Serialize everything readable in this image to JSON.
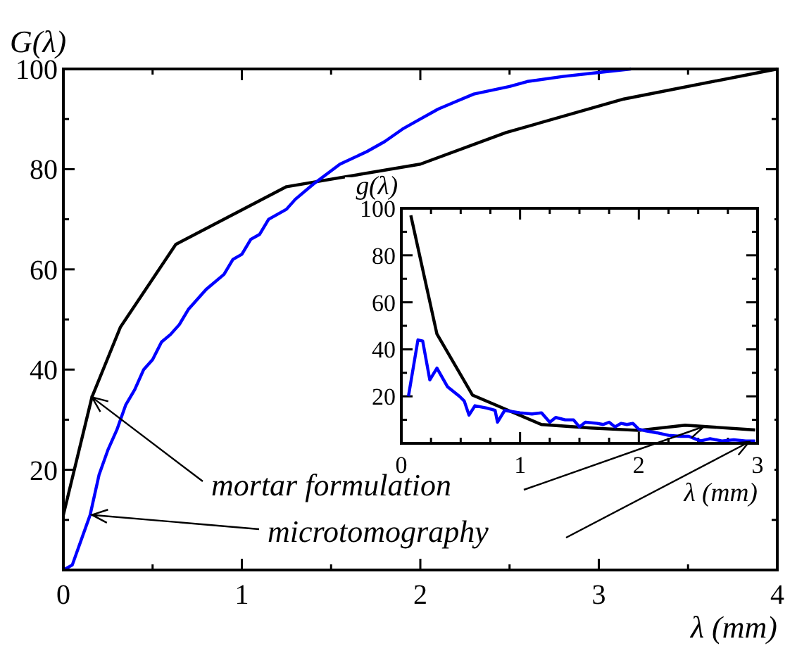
{
  "chart_data": [
    {
      "type": "line",
      "xlabel": "λ (mm)",
      "ylabel": "G(λ)",
      "xlim": [
        0,
        4
      ],
      "ylim": [
        0,
        100
      ],
      "xticks": [
        0,
        {
          "value": 0.5,
          "label": null
        },
        1,
        {
          "value": 1.5,
          "label": null
        },
        2,
        {
          "value": 2.5,
          "label": null
        },
        3,
        {
          "value": 3.5,
          "label": null
        },
        4
      ],
      "yticks": [
        {
          "value": 10,
          "label": null
        },
        20,
        {
          "value": 30,
          "label": null
        },
        40,
        {
          "value": 50,
          "label": null
        },
        60,
        {
          "value": 70,
          "label": null
        },
        80,
        {
          "value": 90,
          "label": null
        },
        100
      ],
      "grid": false,
      "series": [
        {
          "color": "#000000",
          "x": [
            0,
            0.16,
            0.32,
            0.63,
            1.25,
            2,
            2.48,
            3.14,
            4
          ],
          "values": [
            11,
            34.5,
            48.5,
            65,
            76.5,
            81,
            87.3,
            94,
            100
          ]
        },
        {
          "color": "#0000ff",
          "x": [
            0,
            0.05,
            0.1,
            0.15,
            0.2,
            0.25,
            0.3,
            0.35,
            0.4,
            0.45,
            0.5,
            0.55,
            0.6,
            0.65,
            0.7,
            0.75,
            0.8,
            0.9,
            0.95,
            1.0,
            1.05,
            1.1,
            1.15,
            1.25,
            1.3,
            1.4,
            1.55,
            1.7,
            1.8,
            1.9,
            2.0,
            2.1,
            2.2,
            2.3,
            2.5,
            2.6,
            2.8,
            3.0,
            3.18
          ],
          "values": [
            0,
            1,
            6,
            11,
            19,
            24,
            28,
            33,
            36,
            40,
            42,
            45.5,
            47,
            49,
            52,
            54,
            56,
            59,
            62,
            63,
            66,
            67,
            70,
            72,
            74,
            77,
            81,
            83.5,
            85.5,
            88,
            90,
            92,
            93.5,
            95,
            96.5,
            97.5,
            98.5,
            99.3,
            100
          ]
        }
      ],
      "annotations": [
        {
          "text": "mortar formulation",
          "x": 0.16,
          "y": 34.5
        },
        {
          "text": "microtomography",
          "x": 0.16,
          "y": 11
        }
      ]
    },
    {
      "type": "line",
      "xlabel": "λ (mm)",
      "ylabel": "g(λ)",
      "xlim": [
        0,
        3
      ],
      "ylim": [
        0,
        100
      ],
      "xticks": [
        0,
        {
          "value": 0.25,
          "label": null
        },
        {
          "value": 0.5,
          "label": null
        },
        {
          "value": 0.75,
          "label": null
        },
        1,
        {
          "value": 1.25,
          "label": null
        },
        {
          "value": 1.5,
          "label": null
        },
        {
          "value": 1.75,
          "label": null
        },
        2,
        {
          "value": 2.25,
          "label": null
        },
        {
          "value": 2.5,
          "label": null
        },
        {
          "value": 2.75,
          "label": null
        },
        3
      ],
      "yticks": [
        {
          "value": 10,
          "label": null
        },
        20,
        {
          "value": 30,
          "label": null
        },
        40,
        {
          "value": 50,
          "label": null
        },
        60,
        {
          "value": 70,
          "label": null
        },
        80,
        {
          "value": 90,
          "label": null
        },
        100
      ],
      "grid": false,
      "series": [
        {
          "color": "#000000",
          "x": [
            0.08,
            0.3,
            0.6,
            1.18,
            1.6,
            2.0,
            2.39,
            2.98
          ],
          "values": [
            97,
            46.5,
            20.5,
            8,
            6.5,
            5.5,
            7.7,
            5.7
          ]
        },
        {
          "color": "#0000ff",
          "x": [
            0.06,
            0.14,
            0.18,
            0.24,
            0.3,
            0.39,
            0.49,
            0.53,
            0.57,
            0.62,
            0.72,
            0.79,
            0.81,
            0.87,
            1.0,
            1.1,
            1.18,
            1.25,
            1.3,
            1.38,
            1.45,
            1.5,
            1.55,
            1.65,
            1.7,
            1.75,
            1.8,
            1.85,
            1.9,
            1.95,
            2.0,
            2.06,
            2.15,
            2.25,
            2.35,
            2.42,
            2.52,
            2.6,
            2.7,
            2.8,
            2.9,
            2.98
          ],
          "values": [
            20,
            44,
            43.5,
            27,
            32,
            24,
            20,
            18,
            12,
            16,
            15,
            14,
            9,
            14,
            13,
            12.5,
            13,
            9,
            11,
            10,
            10,
            7,
            9,
            8.5,
            8,
            9,
            7,
            8.5,
            8,
            8.5,
            6,
            5.3,
            4.5,
            3.4,
            3,
            3,
            1,
            2,
            1,
            1.5,
            1,
            1
          ]
        }
      ]
    }
  ]
}
